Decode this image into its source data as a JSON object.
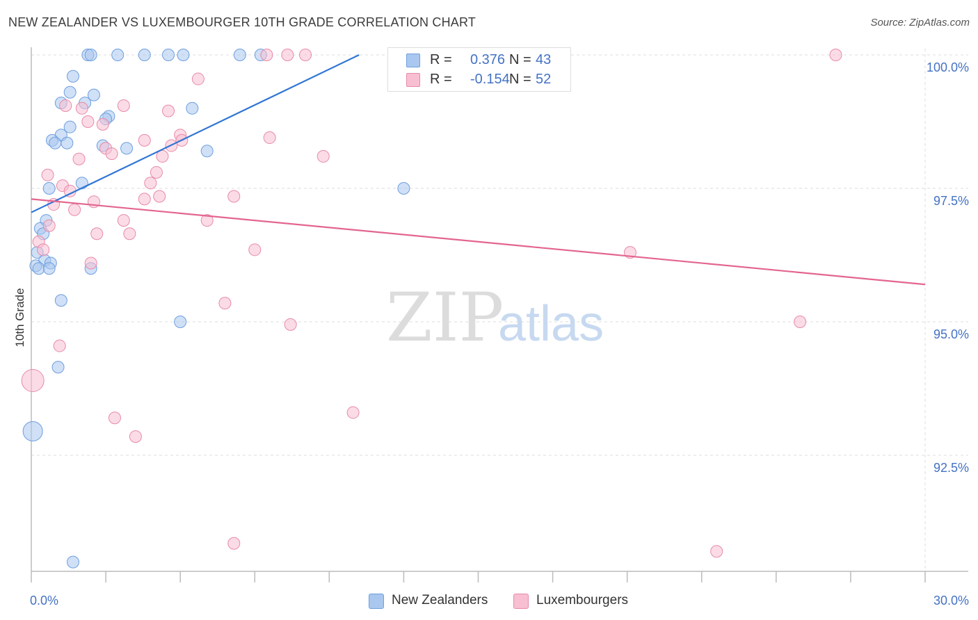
{
  "title": "NEW ZEALANDER VS LUXEMBOURGER 10TH GRADE CORRELATION CHART",
  "source": "Source: ZipAtlas.com",
  "watermark": {
    "zip": "ZIP",
    "atlas": "atlas"
  },
  "legend": {
    "rows": [
      {
        "r_label": "R =",
        "r_value": "0.376",
        "n_label": "N =",
        "n_value": "43",
        "color": "#a9c7ef",
        "border": "#6e9fdf"
      },
      {
        "r_label": "R =",
        "r_value": "-0.154",
        "n_label": "N =",
        "n_value": "52",
        "color": "#f7bfd1",
        "border": "#e88aa8"
      }
    ]
  },
  "bottom_legend": [
    {
      "label": "New Zealanders",
      "color": "#a9c7ef",
      "border": "#6e9fdf"
    },
    {
      "label": "Luxembourgers",
      "color": "#f7bfd1",
      "border": "#e88aa8"
    }
  ],
  "chart_data": {
    "type": "scatter",
    "title": "NEW ZEALANDER VS LUXEMBOURGER 10TH GRADE CORRELATION CHART",
    "xlabel": "",
    "ylabel": "10th Grade",
    "x_tick_labels": [
      {
        "value": 0,
        "label": "0.0%"
      },
      {
        "value": 30,
        "label": "30.0%"
      }
    ],
    "y_tick_labels": [
      {
        "value": 100,
        "label": "100.0%"
      },
      {
        "value": 97.5,
        "label": "97.5%"
      },
      {
        "value": 95,
        "label": "95.0%"
      },
      {
        "value": 92.5,
        "label": "92.5%"
      }
    ],
    "xlim": [
      0,
      30
    ],
    "ylim": [
      90.2,
      100.4
    ],
    "grid": true,
    "legend_position": "top-center",
    "series": [
      {
        "name": "New Zealanders",
        "color": "#a9c7ef",
        "stroke": "#6e9fdf",
        "trend_color": "#2f75d6",
        "trend": {
          "x0": 0,
          "y0": 97.05,
          "x1": 11.0,
          "y1": 100.0
        },
        "points": [
          {
            "x": 1.9,
            "y": 100.0
          },
          {
            "x": 2.0,
            "y": 100.0
          },
          {
            "x": 2.9,
            "y": 100.0
          },
          {
            "x": 3.8,
            "y": 100.0
          },
          {
            "x": 4.6,
            "y": 100.0
          },
          {
            "x": 5.1,
            "y": 100.0
          },
          {
            "x": 7.0,
            "y": 100.0
          },
          {
            "x": 7.7,
            "y": 100.0
          },
          {
            "x": 12.6,
            "y": 100.0
          },
          {
            "x": 1.4,
            "y": 99.6
          },
          {
            "x": 1.3,
            "y": 99.3
          },
          {
            "x": 2.1,
            "y": 99.25
          },
          {
            "x": 1.0,
            "y": 99.1
          },
          {
            "x": 1.8,
            "y": 99.1
          },
          {
            "x": 5.4,
            "y": 99.0
          },
          {
            "x": 2.6,
            "y": 98.85
          },
          {
            "x": 2.5,
            "y": 98.8
          },
          {
            "x": 1.3,
            "y": 98.65
          },
          {
            "x": 1.0,
            "y": 98.5
          },
          {
            "x": 0.7,
            "y": 98.4
          },
          {
            "x": 0.8,
            "y": 98.35
          },
          {
            "x": 1.2,
            "y": 98.35
          },
          {
            "x": 2.4,
            "y": 98.3
          },
          {
            "x": 3.2,
            "y": 98.25
          },
          {
            "x": 5.9,
            "y": 98.2
          },
          {
            "x": 1.7,
            "y": 97.6
          },
          {
            "x": 0.6,
            "y": 97.5
          },
          {
            "x": 12.5,
            "y": 97.5
          },
          {
            "x": 0.5,
            "y": 96.9
          },
          {
            "x": 0.3,
            "y": 96.75
          },
          {
            "x": 0.4,
            "y": 96.65
          },
          {
            "x": 0.2,
            "y": 96.3
          },
          {
            "x": 0.45,
            "y": 96.15
          },
          {
            "x": 0.65,
            "y": 96.1
          },
          {
            "x": 0.15,
            "y": 96.05
          },
          {
            "x": 0.25,
            "y": 96.0
          },
          {
            "x": 0.6,
            "y": 96.0
          },
          {
            "x": 2.0,
            "y": 96.0
          },
          {
            "x": 1.0,
            "y": 95.4
          },
          {
            "x": 5.0,
            "y": 95.0
          },
          {
            "x": 0.9,
            "y": 94.15
          },
          {
            "x": 0.05,
            "y": 92.95
          },
          {
            "x": 1.4,
            "y": 90.5
          }
        ]
      },
      {
        "name": "Luxembourgers",
        "color": "#f7bfd1",
        "stroke": "#e88aa8",
        "trend_color": "#e3658f",
        "trend": {
          "x0": 0,
          "y0": 97.3,
          "x1": 30,
          "y1": 95.7
        },
        "points": [
          {
            "x": 7.9,
            "y": 100.0
          },
          {
            "x": 8.6,
            "y": 100.0
          },
          {
            "x": 9.2,
            "y": 100.0
          },
          {
            "x": 27.0,
            "y": 100.0
          },
          {
            "x": 5.6,
            "y": 99.55
          },
          {
            "x": 3.1,
            "y": 99.05
          },
          {
            "x": 1.15,
            "y": 99.05
          },
          {
            "x": 1.7,
            "y": 99.0
          },
          {
            "x": 4.6,
            "y": 98.95
          },
          {
            "x": 1.9,
            "y": 98.75
          },
          {
            "x": 2.4,
            "y": 98.7
          },
          {
            "x": 5.0,
            "y": 98.5
          },
          {
            "x": 8.0,
            "y": 98.45
          },
          {
            "x": 3.8,
            "y": 98.4
          },
          {
            "x": 5.05,
            "y": 98.4
          },
          {
            "x": 4.7,
            "y": 98.3
          },
          {
            "x": 2.5,
            "y": 98.25
          },
          {
            "x": 2.7,
            "y": 98.15
          },
          {
            "x": 4.4,
            "y": 98.1
          },
          {
            "x": 9.8,
            "y": 98.1
          },
          {
            "x": 1.6,
            "y": 98.05
          },
          {
            "x": 4.2,
            "y": 97.8
          },
          {
            "x": 0.55,
            "y": 97.75
          },
          {
            "x": 4.0,
            "y": 97.6
          },
          {
            "x": 1.05,
            "y": 97.55
          },
          {
            "x": 1.3,
            "y": 97.45
          },
          {
            "x": 4.3,
            "y": 97.35
          },
          {
            "x": 3.8,
            "y": 97.3
          },
          {
            "x": 6.8,
            "y": 97.35
          },
          {
            "x": 2.1,
            "y": 97.25
          },
          {
            "x": 0.75,
            "y": 97.2
          },
          {
            "x": 1.45,
            "y": 97.1
          },
          {
            "x": 3.1,
            "y": 96.9
          },
          {
            "x": 5.9,
            "y": 96.9
          },
          {
            "x": 0.6,
            "y": 96.8
          },
          {
            "x": 2.2,
            "y": 96.65
          },
          {
            "x": 3.3,
            "y": 96.65
          },
          {
            "x": 0.25,
            "y": 96.5
          },
          {
            "x": 0.4,
            "y": 96.35
          },
          {
            "x": 7.5,
            "y": 96.35
          },
          {
            "x": 20.1,
            "y": 96.3
          },
          {
            "x": 2.0,
            "y": 96.1
          },
          {
            "x": 6.5,
            "y": 95.35
          },
          {
            "x": 8.7,
            "y": 94.95
          },
          {
            "x": 25.8,
            "y": 95.0
          },
          {
            "x": 0.95,
            "y": 94.55
          },
          {
            "x": 0.05,
            "y": 93.9
          },
          {
            "x": 10.8,
            "y": 93.3
          },
          {
            "x": 2.8,
            "y": 93.2
          },
          {
            "x": 3.5,
            "y": 92.85
          },
          {
            "x": 6.8,
            "y": 90.85
          },
          {
            "x": 23.0,
            "y": 90.7
          }
        ]
      }
    ]
  }
}
